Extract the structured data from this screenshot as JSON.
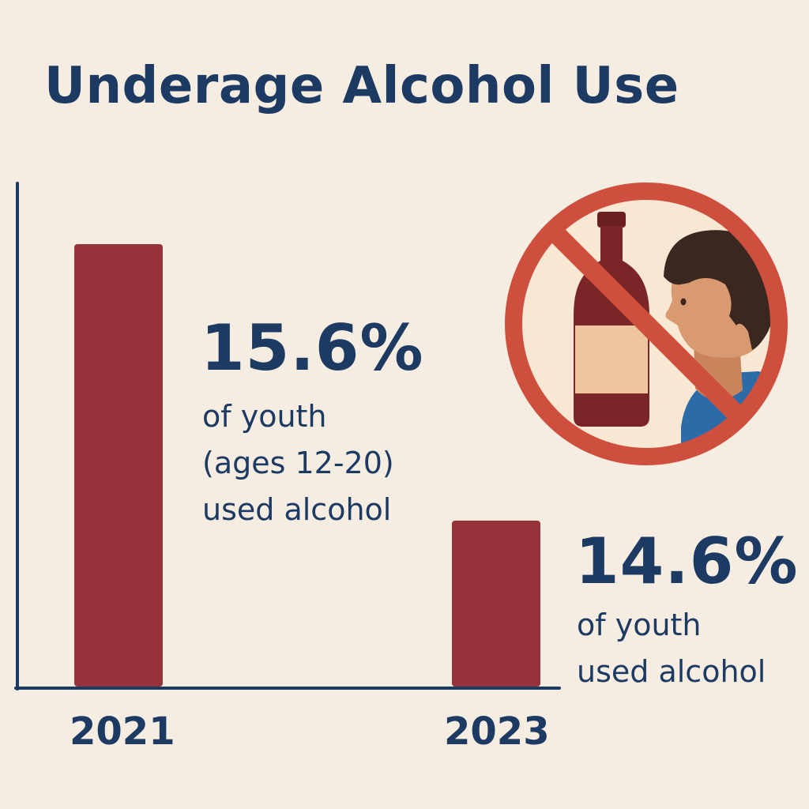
{
  "title": "Underage Alcohol Use",
  "colors": {
    "background": "#f6ede2",
    "bar": "#963239",
    "text": "#1d3a63",
    "no_symbol": "#cf4f3e"
  },
  "icon": "no-underage-drinking-icon",
  "callouts": [
    {
      "value_label": "15.6%",
      "lines": [
        "of youth",
        "(ages 12-20)",
        "used alcohol"
      ]
    },
    {
      "value_label": "14.6%",
      "lines": [
        "of youth",
        "used alcohol"
      ]
    }
  ],
  "chart_data": {
    "type": "bar",
    "categories": [
      "2021",
      "2023"
    ],
    "values": [
      15.6,
      14.6
    ],
    "unit": "%",
    "xlabel": "",
    "ylabel": "",
    "grid": false,
    "legend": "none"
  }
}
